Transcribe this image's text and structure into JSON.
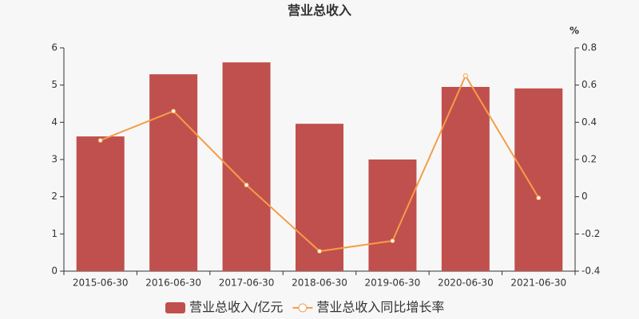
{
  "chart_data": {
    "type": "bar",
    "title": "营业总收入",
    "y2label": "%",
    "categories": [
      "2015-06-30",
      "2016-06-30",
      "2017-06-30",
      "2018-06-30",
      "2019-06-30",
      "2020-06-30",
      "2021-06-30"
    ],
    "series": [
      {
        "name": "营业总收入/亿元",
        "type": "bar",
        "color": "#c0504d",
        "values": [
          3.62,
          5.29,
          5.61,
          3.96,
          3.0,
          4.95,
          4.91
        ]
      },
      {
        "name": "营业总收入同比增长率",
        "type": "line",
        "axis": "y2",
        "color": "#f59d47",
        "values": [
          0.303,
          0.46,
          0.063,
          -0.293,
          -0.237,
          0.65,
          -0.006
        ]
      }
    ],
    "ylim": [
      0,
      6
    ],
    "yticks": [
      0,
      1,
      2,
      3,
      4,
      5,
      6
    ],
    "y2lim": [
      -0.4,
      0.8
    ],
    "y2ticks": [
      -0.4,
      -0.2,
      0,
      0.2,
      0.4,
      0.6,
      0.8
    ]
  }
}
